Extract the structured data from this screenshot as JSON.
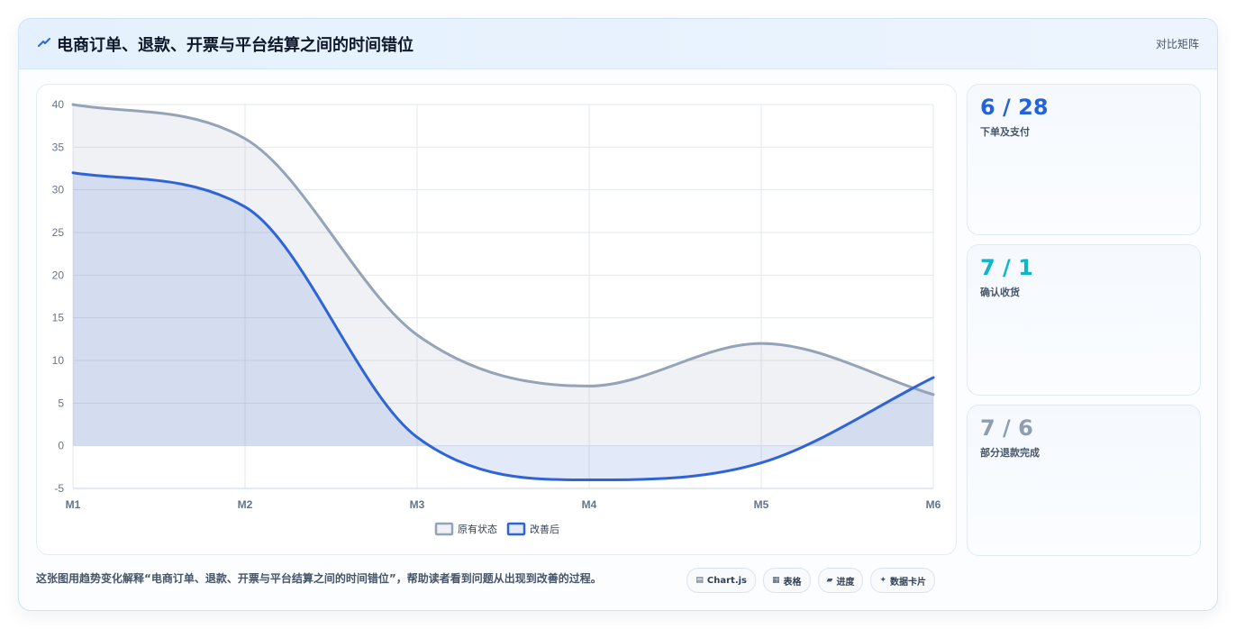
{
  "header": {
    "icon": "trend-icon",
    "title": "电商订单、退款、开票与平台结算之间的时间错位",
    "mode_label": "对比矩阵"
  },
  "chart_data": {
    "type": "area",
    "categories": [
      "M1",
      "M2",
      "M3",
      "M4",
      "M5",
      "M6"
    ],
    "series": [
      {
        "name": "原有状态",
        "values": [
          40,
          36,
          13,
          7,
          12,
          6
        ],
        "color": "#94a3b8",
        "fill": "rgba(148,163,184,0.15)"
      },
      {
        "name": "改善后",
        "values": [
          32,
          28,
          1,
          -4,
          -2,
          8
        ],
        "color": "#2f64d6",
        "fill": "rgba(47,100,214,0.14)"
      }
    ],
    "ylim": [
      -5,
      40
    ],
    "yticks": [
      40,
      35,
      30,
      25,
      20,
      15,
      10,
      5,
      0,
      -5
    ],
    "grid": true,
    "legend_position": "bottom",
    "xlabel": "",
    "ylabel": "",
    "title": ""
  },
  "stats": [
    {
      "value": "6 / 28",
      "label": "下单及支付",
      "color": "#2563d6"
    },
    {
      "value": "7 / 1",
      "label": "确认收货",
      "color": "#0fb5c8"
    },
    {
      "value": "7 / 6",
      "label": "部分退款完成",
      "color": "#8f9db0"
    }
  ],
  "footer": {
    "description": "这张图用趋势变化解释“电商订单、退款、开票与平台结算之间的时间错位”，帮助读者看到问题从出现到改善的过程。",
    "tags": [
      {
        "icon": "chart-icon",
        "glyph": "▤",
        "label": "Chart.js"
      },
      {
        "icon": "table-icon",
        "glyph": "▦",
        "label": "表格"
      },
      {
        "icon": "progress-icon",
        "glyph": "▰",
        "label": "进度"
      },
      {
        "icon": "sparkle-icon",
        "glyph": "✦",
        "label": "数据卡片"
      }
    ]
  }
}
